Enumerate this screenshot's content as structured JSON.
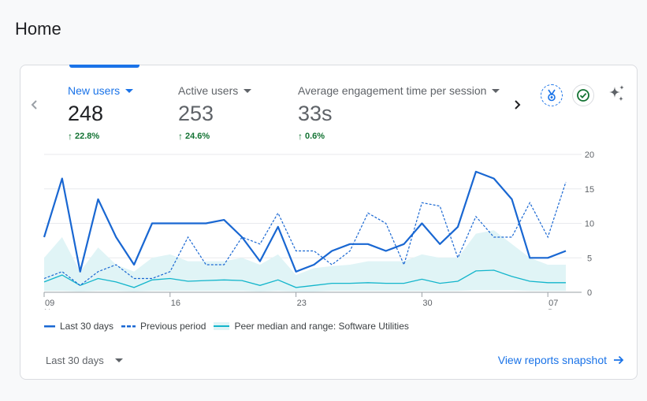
{
  "page": {
    "title": "Home"
  },
  "metrics": [
    {
      "label": "New users",
      "value": "248",
      "change": "22.8%",
      "active": true
    },
    {
      "label": "Active users",
      "value": "253",
      "change": "24.6%",
      "active": false
    },
    {
      "label": "Average engagement time per session",
      "value": "33s",
      "change": "0.6%",
      "active": false
    }
  ],
  "icons": {
    "prev": "chevron-left-icon",
    "next": "chevron-right-icon",
    "benchmark": "medal-icon",
    "status": "check-circle-icon",
    "insights": "sparkle-icon",
    "up": "arrow-up-icon"
  },
  "colors": {
    "accent": "#1a73e8",
    "positive": "#137333",
    "line": "#1967d2",
    "peer_fill": "#e0f4f6",
    "peer_line": "#12b5cb"
  },
  "chart_data": {
    "type": "line",
    "x_tick_labels": [
      {
        "day": "09",
        "month": "Nov"
      },
      {
        "day": "16",
        "month": ""
      },
      {
        "day": "23",
        "month": ""
      },
      {
        "day": "30",
        "month": ""
      },
      {
        "day": "07",
        "month": "Dec"
      }
    ],
    "x_tick_indices": [
      0,
      7,
      14,
      21,
      28
    ],
    "y_ticks": [
      0,
      5,
      10,
      15,
      20
    ],
    "ylim": [
      0,
      20
    ],
    "y_axis_side": "right",
    "grid": true,
    "legend_position": "bottom-left",
    "series": [
      {
        "name": "Last 30 days",
        "style": "solid",
        "values": [
          8,
          16.5,
          3,
          13.5,
          8,
          4,
          10,
          10,
          10,
          10,
          10.5,
          8,
          4.5,
          9.5,
          3,
          4,
          6,
          7,
          7,
          6,
          7,
          10,
          7,
          9.5,
          17.5,
          16.5,
          13.5,
          5,
          5,
          6
        ]
      },
      {
        "name": "Previous period",
        "style": "dashed",
        "values": [
          2,
          3,
          1,
          3,
          4,
          2,
          2,
          3,
          8,
          4,
          4,
          8,
          7,
          11.5,
          6,
          6,
          4,
          6,
          11.5,
          10,
          4,
          13,
          12.5,
          5,
          11,
          8,
          8,
          13,
          8,
          16
        ]
      }
    ],
    "peer": {
      "name": "Peer median and range: Software Utilities",
      "median": [
        1.5,
        2.5,
        1,
        2,
        1.5,
        0.7,
        1.8,
        2,
        1.6,
        1.7,
        1.8,
        1.7,
        1,
        1.8,
        0.7,
        1,
        1.3,
        1.3,
        1.4,
        1.3,
        1.3,
        1.9,
        1.3,
        1.6,
        3.1,
        3.2,
        2.3,
        1.6,
        1.4,
        1.4
      ],
      "upper": [
        5,
        8,
        3,
        6.5,
        4,
        3,
        5,
        5.5,
        4.5,
        4.5,
        4.5,
        5,
        4,
        5.5,
        2.5,
        3.5,
        3.8,
        4,
        4.5,
        4.5,
        4.5,
        5.5,
        5,
        5,
        8.5,
        9,
        7,
        5,
        4,
        4
      ],
      "lower": [
        0.2,
        0.2,
        0.1,
        0.2,
        0.2,
        0.1,
        0.2,
        0.2,
        0.2,
        0.2,
        0.2,
        0.2,
        0.1,
        0.2,
        0.1,
        0.1,
        0.2,
        0.2,
        0.2,
        0.2,
        0.2,
        0.2,
        0.2,
        0.2,
        0.3,
        0.3,
        0.3,
        0.2,
        0.2,
        0.2
      ]
    }
  },
  "legend": {
    "current": "Last 30 days",
    "previous": "Previous period",
    "peer": "Peer median and range: Software Utilities"
  },
  "footer": {
    "date_range": "Last 30 days",
    "link": "View reports snapshot"
  }
}
